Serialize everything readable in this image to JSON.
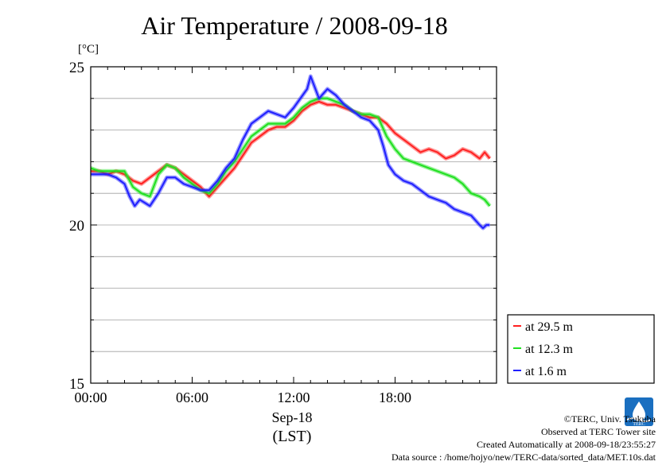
{
  "title": "Air Temperature / 2008-09-18",
  "unit_label": "[°C]",
  "x_axis": {
    "ticks": [
      "00:00",
      "06:00",
      "12:00",
      "18:00"
    ],
    "date_label": "Sep-18",
    "zone_label": "(LST)"
  },
  "footer": {
    "copyright": "©TERC, Univ. Tsukuba",
    "observed": "Observed at TERC Tower site",
    "created": "Created Automatically at 2008-09-18/23:55:27",
    "source": "Data source : /home/hojyo/new/TERC-data/sorted_data/MET.10s.dat"
  },
  "logo_text": "TERC",
  "colors": {
    "red": "#ff2020",
    "green": "#20e020",
    "blue": "#2020ff",
    "grid": "#a0a0a0"
  },
  "chart_data": {
    "type": "line",
    "ylim": [
      15,
      25
    ],
    "xlim": [
      0,
      24
    ],
    "yticks": [
      15,
      20,
      25
    ],
    "grid": true,
    "legend_position": "right",
    "series": [
      {
        "name": "at 29.5 m",
        "color": "#ff2020",
        "x": [
          0,
          0.5,
          1,
          1.5,
          2,
          2.5,
          3,
          3.5,
          4,
          4.5,
          5,
          5.5,
          6,
          6.5,
          7,
          7.5,
          8,
          8.5,
          9,
          9.5,
          10,
          10.5,
          11,
          11.5,
          12,
          12.5,
          13,
          13.5,
          14,
          14.5,
          15,
          15.5,
          16,
          16.5,
          17,
          17.5,
          18,
          18.5,
          19,
          19.5,
          20,
          20.5,
          21,
          21.5,
          22,
          22.5,
          23,
          23.3,
          23.6
        ],
        "y": [
          21.7,
          21.7,
          21.6,
          21.7,
          21.6,
          21.4,
          21.3,
          21.5,
          21.7,
          21.9,
          21.8,
          21.6,
          21.4,
          21.2,
          20.9,
          21.2,
          21.5,
          21.8,
          22.2,
          22.6,
          22.8,
          23.0,
          23.1,
          23.1,
          23.3,
          23.6,
          23.8,
          23.9,
          23.8,
          23.8,
          23.7,
          23.6,
          23.5,
          23.4,
          23.4,
          23.2,
          22.9,
          22.7,
          22.5,
          22.3,
          22.4,
          22.3,
          22.1,
          22.2,
          22.4,
          22.3,
          22.1,
          22.3,
          22.1
        ]
      },
      {
        "name": "at 12.3 m",
        "color": "#20e020",
        "x": [
          0,
          0.5,
          1,
          1.5,
          2,
          2.5,
          3,
          3.5,
          4,
          4.5,
          5,
          5.5,
          6,
          6.5,
          7,
          7.5,
          8,
          8.5,
          9,
          9.5,
          10,
          10.5,
          11,
          11.5,
          12,
          12.5,
          13,
          13.5,
          14,
          14.5,
          15,
          15.5,
          16,
          16.5,
          17,
          17.5,
          18,
          18.5,
          19,
          19.5,
          20,
          20.5,
          21,
          21.5,
          22,
          22.5,
          23,
          23.3,
          23.6
        ],
        "y": [
          21.8,
          21.7,
          21.7,
          21.7,
          21.7,
          21.2,
          21.0,
          20.9,
          21.6,
          21.9,
          21.8,
          21.5,
          21.3,
          21.1,
          21.0,
          21.3,
          21.7,
          22.0,
          22.4,
          22.8,
          23.0,
          23.2,
          23.2,
          23.2,
          23.4,
          23.7,
          23.9,
          24.0,
          24.0,
          23.9,
          23.8,
          23.6,
          23.5,
          23.5,
          23.4,
          22.8,
          22.4,
          22.1,
          22.0,
          21.9,
          21.8,
          21.7,
          21.6,
          21.5,
          21.3,
          21.0,
          20.9,
          20.8,
          20.6
        ]
      },
      {
        "name": "at 1.6 m",
        "color": "#2020ff",
        "x": [
          0,
          0.5,
          1,
          1.5,
          2,
          2.3,
          2.6,
          2.9,
          3.2,
          3.5,
          4,
          4.5,
          5,
          5.5,
          6,
          6.5,
          7,
          7.5,
          8,
          8.5,
          9,
          9.5,
          10,
          10.5,
          11,
          11.5,
          12,
          12.4,
          12.8,
          13,
          13.5,
          14,
          14.5,
          15,
          15.5,
          16,
          16.5,
          17,
          17.3,
          17.6,
          18,
          18.5,
          19,
          19.5,
          20,
          20.5,
          21,
          21.5,
          22,
          22.5,
          23,
          23.2,
          23.4,
          23.6
        ],
        "y": [
          21.6,
          21.6,
          21.6,
          21.5,
          21.3,
          20.9,
          20.6,
          20.8,
          20.7,
          20.6,
          21.0,
          21.5,
          21.5,
          21.3,
          21.2,
          21.1,
          21.1,
          21.4,
          21.8,
          22.1,
          22.7,
          23.2,
          23.4,
          23.6,
          23.5,
          23.4,
          23.7,
          24.0,
          24.3,
          24.7,
          24.0,
          24.3,
          24.1,
          23.8,
          23.6,
          23.4,
          23.3,
          23.0,
          22.5,
          21.9,
          21.6,
          21.4,
          21.3,
          21.1,
          20.9,
          20.8,
          20.7,
          20.5,
          20.4,
          20.3,
          20.0,
          19.9,
          20.0,
          20.0
        ]
      }
    ]
  }
}
